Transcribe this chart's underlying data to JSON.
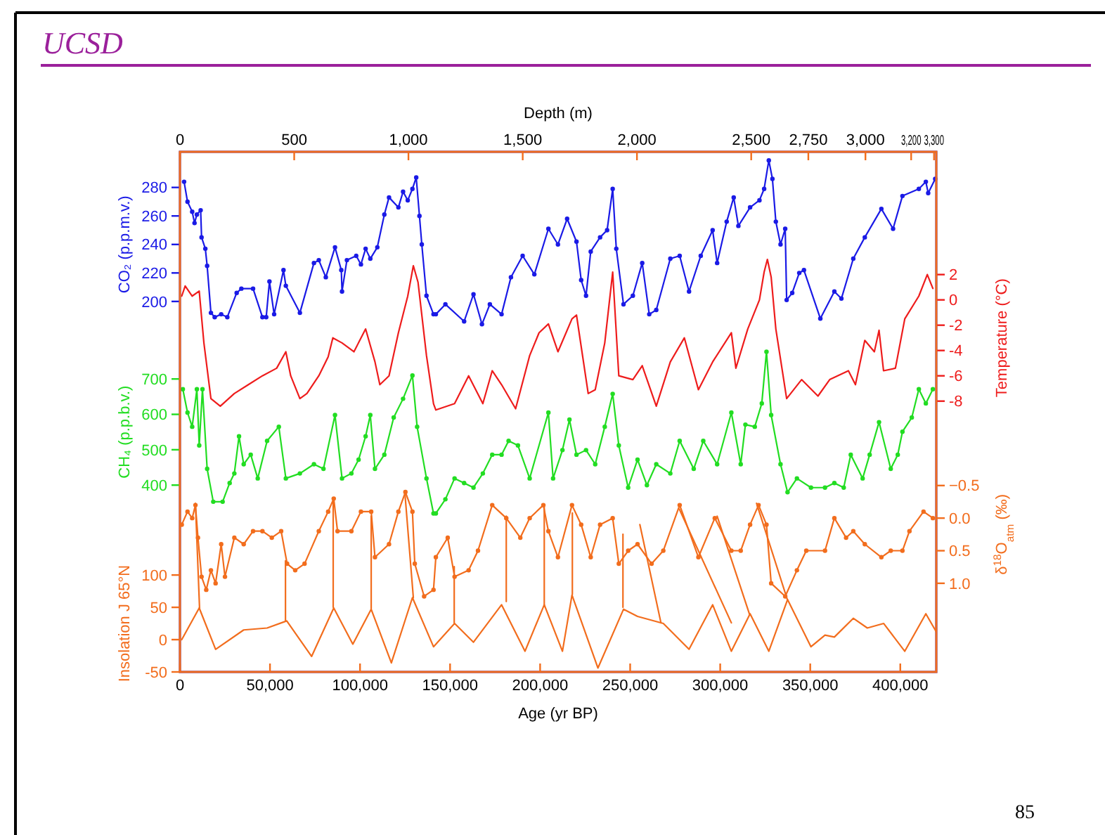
{
  "chart_data": [
    {
      "type": "line",
      "title": "UCSD",
      "annotations": [
        "85"
      ],
      "x2label": "Depth (m)",
      "ylabel": "CO₂ (p.p.m.v.)",
      "y2label": "Temperature (°C)",
      "y3label": "CH₄ (p.p.b.v.)",
      "xlim": [
        0,
        420000
      ],
      "tick_labels": "y",
      "x2lim": [
        0,
        3310
      ],
      "x2ticks": [
        0,
        {
          "value": 500,
          "label": "500"
        },
        {
          "value": 1000,
          "label": "1,000"
        },
        {
          "value": 1500,
          "label": "1,500"
        },
        {
          "value": 2000,
          "label": "2,000"
        },
        {
          "value": 2500,
          "label": "2,500"
        },
        {
          "value": 2750,
          "label": "2,750"
        },
        {
          "value": 3000,
          "label": "3,000"
        },
        {
          "value": 3200,
          "label": "3,200"
        },
        {
          "value": 3300,
          "label": "3,300"
        }
      ],
      "ylim": [
        -60,
        305
      ],
      "yticks": [
        200,
        220,
        240,
        260,
        280
      ],
      "y2lim": [
        -29.4,
        11.7
      ],
      "y2ticks": [
        2,
        0,
        -2,
        -4,
        -6,
        -8
      ],
      "y3lim": [
        -128,
        1342
      ],
      "y3ticks": [
        400,
        500,
        600,
        700
      ],
      "line_style": "solid",
      "series": [
        {
          "axis": "y",
          "color": "#1a1ae6",
          "marker": "circle",
          "x": [
            2300,
            4200,
            6800,
            8100,
            9400,
            11500,
            12000,
            14100,
            15100,
            17200,
            19300,
            22900,
            26300,
            31500,
            34100,
            40600,
            45800,
            47900,
            49700,
            52300,
            57500,
            58800,
            66600,
            74400,
            77100,
            81000,
            86100,
            89600,
            90000,
            92700,
            97900,
            100500,
            103100,
            105700,
            109600,
            113500,
            116100,
            121300,
            123900,
            126500,
            129100,
            131200,
            133000,
            134300,
            136900,
            140800,
            142100,
            147400,
            157800,
            163000,
            167700,
            172100,
            178600,
            183800,
            190300,
            196800,
            204600,
            209900,
            215000,
            220200,
            222800,
            225500,
            228100,
            233300,
            237200,
            240300,
            242300,
            246300,
            251500,
            256700,
            260600,
            264500,
            272300,
            277500,
            282700,
            289200,
            295800,
            298300,
            303600,
            307500,
            310100,
            316600,
            321800,
            324400,
            327000,
            329000,
            330900,
            333500,
            336100,
            336900,
            340000,
            343900,
            346500,
            355600,
            363400,
            367300,
            373900,
            380300,
            389500,
            396000,
            401200,
            410300,
            414200,
            415500,
            419400
          ],
          "values": [
            284,
            270,
            263,
            255,
            261,
            264,
            245,
            237,
            225,
            192,
            189,
            191,
            189,
            206,
            209,
            209,
            189,
            189,
            214,
            191,
            222,
            211,
            192,
            227,
            229,
            217,
            238,
            222,
            207,
            229,
            232,
            226,
            237,
            230,
            238,
            261,
            273,
            266,
            277,
            271,
            279,
            287,
            260,
            240,
            204,
            191,
            191,
            198,
            186,
            205,
            184,
            198,
            191,
            217,
            232,
            219,
            251,
            240,
            258,
            242,
            215,
            204,
            235,
            245,
            250,
            279,
            237,
            198,
            204,
            227,
            191,
            194,
            230,
            232,
            207,
            232,
            250,
            227,
            256,
            273,
            253,
            266,
            271,
            279,
            299,
            286,
            256,
            240,
            251,
            201,
            206,
            220,
            222,
            188,
            207,
            202,
            230,
            245,
            265,
            251,
            274,
            279,
            284,
            276,
            286
          ]
        },
        {
          "axis": "y2",
          "color": "#ee1c1c",
          "marker": "none",
          "x": [
            1000,
            2900,
            6800,
            10700,
            13300,
            17200,
            22400,
            30200,
            38000,
            45800,
            53700,
            58800,
            61500,
            66600,
            70500,
            77100,
            82300,
            84900,
            90000,
            96600,
            103100,
            108300,
            111000,
            116100,
            121300,
            126500,
            129600,
            132200,
            136900,
            140800,
            142100,
            152500,
            160300,
            168200,
            173400,
            178600,
            186400,
            194200,
            199400,
            204600,
            209900,
            217700,
            220200,
            226700,
            230600,
            235900,
            240300,
            243700,
            251500,
            256700,
            264500,
            272300,
            280100,
            287900,
            295800,
            306200,
            308700,
            315300,
            321800,
            324400,
            326200,
            328300,
            330900,
            336900,
            345200,
            354300,
            360800,
            371200,
            375100,
            380300,
            385600,
            388200,
            390700,
            397300,
            402500,
            410300,
            415000,
            418100
          ],
          "values": [
            0.3,
            1.1,
            0.3,
            0.7,
            -3.4,
            -7.8,
            -8.4,
            -7.4,
            -6.7,
            -6.0,
            -5.4,
            -4.1,
            -6.0,
            -7.8,
            -7.4,
            -6.0,
            -4.5,
            -3.0,
            -3.4,
            -4.1,
            -2.3,
            -4.9,
            -6.7,
            -6.0,
            -2.6,
            0.3,
            2.7,
            1.4,
            -4.4,
            -8.2,
            -8.7,
            -8.2,
            -6.0,
            -8.2,
            -5.6,
            -6.7,
            -8.6,
            -4.4,
            -2.6,
            -1.9,
            -4.1,
            -1.5,
            -1.2,
            -7.4,
            -7.1,
            -3.4,
            2.2,
            -6.0,
            -6.3,
            -5.2,
            -8.4,
            -4.9,
            -3.0,
            -7.1,
            -4.9,
            -2.6,
            -5.4,
            -2.3,
            0.0,
            2.2,
            3.2,
            1.8,
            -2.3,
            -7.8,
            -6.3,
            -7.6,
            -6.3,
            -5.6,
            -6.7,
            -3.2,
            -4.1,
            -2.4,
            -5.6,
            -5.4,
            -1.5,
            0.3,
            2.0,
            0.9
          ]
        },
        {
          "axis": "y3",
          "color": "#22dd22",
          "marker": "circle",
          "x": [
            1600,
            4200,
            6800,
            9400,
            10700,
            12500,
            15100,
            18500,
            23700,
            27600,
            30200,
            32800,
            35400,
            39300,
            43200,
            48400,
            54900,
            58800,
            66600,
            74400,
            79700,
            86100,
            90000,
            95200,
            99200,
            103100,
            105700,
            108300,
            113500,
            118700,
            123900,
            129100,
            131700,
            136900,
            140800,
            142100,
            147400,
            152500,
            157800,
            163000,
            168200,
            173400,
            178600,
            182500,
            187700,
            194200,
            204600,
            207200,
            212400,
            216300,
            220200,
            225500,
            230600,
            235900,
            240300,
            243700,
            248900,
            254100,
            259300,
            264500,
            272300,
            277500,
            285300,
            290600,
            298300,
            306200,
            311400,
            314000,
            319200,
            323100,
            325700,
            328300,
            333500,
            337400,
            342600,
            350400,
            358200,
            363400,
            368600,
            372500,
            379100,
            383000,
            388200,
            394700,
            398600,
            401200,
            406400,
            410300,
            414200,
            418100
          ],
          "values": [
            671,
            605,
            565,
            671,
            512,
            671,
            446,
            353,
            353,
            406,
            433,
            538,
            459,
            486,
            419,
            525,
            565,
            419,
            433,
            459,
            446,
            598,
            419,
            433,
            472,
            538,
            598,
            446,
            486,
            591,
            644,
            710,
            565,
            419,
            320,
            320,
            360,
            419,
            406,
            393,
            433,
            486,
            486,
            525,
            512,
            419,
            605,
            419,
            499,
            585,
            486,
            499,
            459,
            565,
            658,
            512,
            393,
            472,
            400,
            459,
            433,
            525,
            446,
            525,
            459,
            605,
            459,
            571,
            565,
            631,
            777,
            598,
            459,
            380,
            419,
            393,
            393,
            406,
            393,
            486,
            419,
            486,
            578,
            446,
            486,
            551,
            591,
            671,
            631,
            671
          ]
        }
      ]
    },
    {
      "type": "line",
      "xlabel": "Age (yr BP)",
      "ylabel": "Insolation J 65°N",
      "y2label": "δ$^{18}$O$_{atm}$ (‰)",
      "xlim": [
        0,
        420000
      ],
      "xticks": [
        0,
        {
          "value": 50000,
          "label": "50,000"
        },
        {
          "value": 100000,
          "label": "100,000"
        },
        {
          "value": 150000,
          "label": "150,000"
        },
        {
          "value": 200000,
          "label": "200,000"
        },
        {
          "value": 250000,
          "label": "250,000"
        },
        {
          "value": 300000,
          "label": "300,000"
        },
        {
          "value": 350000,
          "label": "350,000"
        },
        {
          "value": 400000,
          "label": "400,000"
        }
      ],
      "ylim": [
        -50,
        755
      ],
      "yticks": [
        -50,
        0,
        50,
        100
      ],
      "y2lim": [
        2.36,
        -5.62
      ],
      "y2ticks": [
        {
          "value": -0.5,
          "label": "−0.5"
        },
        {
          "value": 0,
          "label": "0.0"
        },
        {
          "value": 0.5,
          "label": "0.5"
        },
        {
          "value": 1,
          "label": "1.0"
        }
      ],
      "line_style": "solid",
      "series": [
        {
          "axis": "y",
          "color": "#f26d1d",
          "marker": "none",
          "x": [
            1000,
            10700,
            19800,
            35400,
            48400,
            59300,
            73100,
            85400,
            96000,
            106200,
            117400,
            129100,
            140800,
            152500,
            163000,
            178600,
            191600,
            202300,
            212400,
            217700,
            232100,
            246300,
            254100,
            268400,
            282700,
            295800,
            306200,
            316600,
            327000,
            337400,
            350400,
            358200,
            363400,
            373900,
            381700,
            390800,
            402500,
            414200,
            420000
          ],
          "values": [
            0,
            49,
            -15,
            15,
            18,
            29,
            -26,
            49,
            -7,
            47,
            -36,
            65,
            -11,
            25,
            -4,
            54,
            -18,
            54,
            -18,
            69,
            -44,
            47,
            36,
            25,
            -15,
            54,
            -18,
            40,
            -18,
            62,
            -11,
            7,
            4,
            33,
            18,
            25,
            -18,
            40,
            12
          ]
        },
        {
          "axis": "y",
          "color": "#f26d1d",
          "marker": "none",
          "x": [
            8600,
            10900
          ],
          "values": [
            211,
            48
          ]
        },
        {
          "axis": "y",
          "color": "#f26d1d",
          "marker": "none",
          "x": [
            58600,
            58600
          ],
          "values": [
            122,
            30
          ]
        },
        {
          "axis": "y",
          "color": "#f26d1d",
          "marker": "none",
          "x": [
            85100,
            85100
          ],
          "values": [
            217,
            50
          ]
        },
        {
          "axis": "y",
          "color": "#f26d1d",
          "marker": "none",
          "x": [
            106200,
            106200
          ],
          "values": [
            191,
            48
          ]
        },
        {
          "axis": "y",
          "color": "#f26d1d",
          "marker": "none",
          "x": [
            125000,
            129600
          ],
          "values": [
            224,
            65
          ]
        },
        {
          "axis": "y",
          "color": "#f26d1d",
          "marker": "none",
          "x": [
            152300,
            152300
          ],
          "values": [
            113,
            26
          ]
        },
        {
          "axis": "y",
          "color": "#f26d1d",
          "marker": "none",
          "x": [
            181200,
            181200
          ],
          "values": [
            191,
            59
          ]
        },
        {
          "axis": "y",
          "color": "#f26d1d",
          "marker": "none",
          "x": [
            202300,
            202300
          ],
          "values": [
            207,
            54
          ]
        },
        {
          "axis": "y",
          "color": "#f26d1d",
          "marker": "none",
          "x": [
            217900,
            217900
          ],
          "values": [
            196,
            70
          ]
        },
        {
          "axis": "y",
          "color": "#f26d1d",
          "marker": "none",
          "x": [
            246000,
            246000
          ],
          "values": [
            163,
            50
          ]
        },
        {
          "axis": "y",
          "color": "#f26d1d",
          "marker": "none",
          "x": [
            255400,
            267100
          ],
          "values": [
            178,
            26
          ]
        },
        {
          "axis": "y",
          "color": "#f26d1d",
          "marker": "none",
          "x": [
            277300,
            306200
          ],
          "values": [
            202,
            26
          ]
        },
        {
          "axis": "y",
          "color": "#f26d1d",
          "marker": "none",
          "x": [
            298300,
            316300
          ],
          "values": [
            191,
            39
          ]
        },
        {
          "axis": "y",
          "color": "#f26d1d",
          "marker": "none",
          "x": [
            320200,
            337400
          ],
          "values": [
            211,
            61
          ]
        },
        {
          "axis": "y2",
          "color": "#f26d1d",
          "marker": "circle",
          "x": [
            1000,
            4200,
            6800,
            8600,
            10000,
            12000,
            14600,
            17200,
            19800,
            22900,
            25000,
            30200,
            35400,
            40600,
            45800,
            51000,
            56200,
            59500,
            64000,
            69200,
            77100,
            82300,
            85400,
            87500,
            95200,
            100500,
            106200,
            108300,
            116100,
            121300,
            125200,
            129100,
            130400,
            135600,
            140800,
            142100,
            148700,
            152500,
            160300,
            165500,
            173400,
            181200,
            189000,
            194200,
            201800,
            204600,
            209900,
            217700,
            222800,
            228100,
            233300,
            240300,
            243700,
            248900,
            254100,
            261900,
            268400,
            277500,
            287900,
            297000,
            306200,
            311400,
            316600,
            321300,
            325700,
            328300,
            336100,
            342600,
            347800,
            358200,
            363400,
            369900,
            373900,
            380300,
            389500,
            394700,
            401200,
            405100,
            412900,
            418100
          ],
          "values": [
            0.1,
            -0.1,
            0.0,
            -0.2,
            0.3,
            0.9,
            1.1,
            0.8,
            1.0,
            0.4,
            0.9,
            0.3,
            0.4,
            0.2,
            0.2,
            0.3,
            0.2,
            0.7,
            0.8,
            0.7,
            0.2,
            -0.1,
            -0.3,
            0.2,
            0.2,
            -0.1,
            -0.1,
            0.6,
            0.4,
            -0.1,
            -0.4,
            -0.1,
            0.7,
            1.2,
            1.1,
            0.6,
            0.3,
            0.9,
            0.8,
            0.5,
            -0.2,
            0.0,
            0.3,
            0.0,
            -0.2,
            0.2,
            0.6,
            -0.2,
            0.1,
            0.6,
            0.1,
            0.0,
            0.7,
            0.5,
            0.4,
            0.7,
            0.5,
            -0.2,
            0.6,
            0.0,
            0.5,
            0.5,
            0.1,
            -0.2,
            0.1,
            1.0,
            1.2,
            0.8,
            0.5,
            0.5,
            0.0,
            0.3,
            0.2,
            0.4,
            0.6,
            0.5,
            0.5,
            0.2,
            -0.1,
            0.0
          ]
        }
      ]
    }
  ]
}
